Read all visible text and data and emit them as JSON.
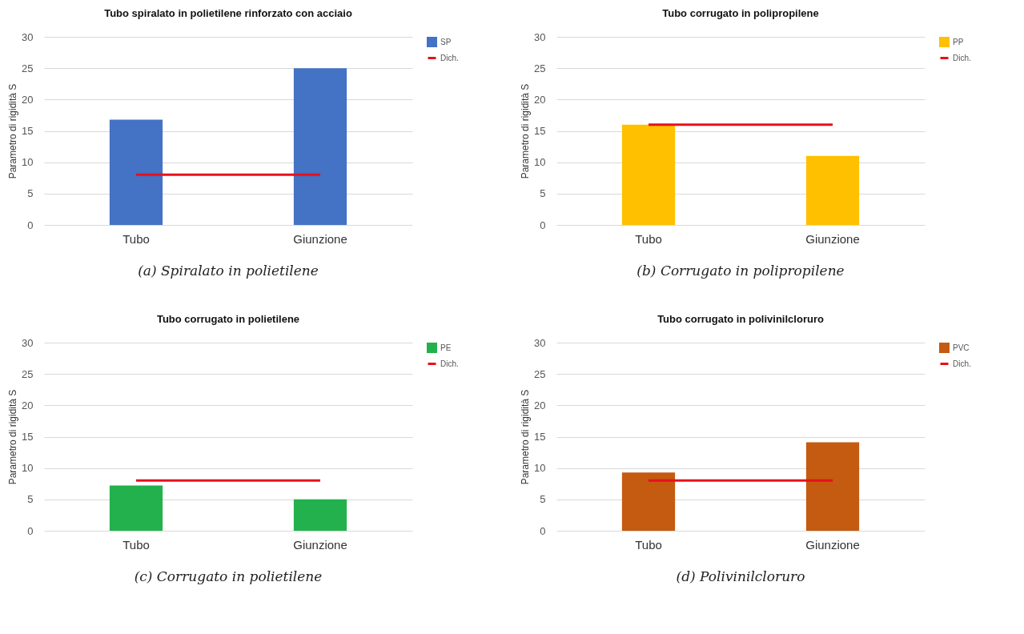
{
  "chart_data": [
    {
      "type": "bar",
      "title": "Tubo spiralato in polietilene rinforzato con acciaio",
      "ylabel": "Parametro di rigidità S",
      "categories": [
        "Tubo",
        "Giunzione"
      ],
      "series": [
        {
          "name": "SP",
          "color": "#4472c4",
          "values": [
            16.8,
            25
          ]
        },
        {
          "name": "Dich.",
          "type": "line",
          "color": "#e8101a",
          "values": [
            8,
            8
          ]
        }
      ],
      "ylim": [
        0,
        30
      ],
      "yticks": [
        0,
        5,
        10,
        15,
        20,
        25,
        30
      ],
      "grid": "y",
      "legend": "right",
      "annotations": [
        "(a) Spiralato in polietilene"
      ]
    },
    {
      "type": "bar",
      "title": "Tubo corrugato in polipropilene",
      "ylabel": "Parametro di rigidità S",
      "categories": [
        "Tubo",
        "Giunzione"
      ],
      "series": [
        {
          "name": "PP",
          "color": "#ffc000",
          "values": [
            16,
            11
          ]
        },
        {
          "name": "Dich.",
          "type": "line",
          "color": "#e8101a",
          "values": [
            16,
            16
          ]
        }
      ],
      "ylim": [
        0,
        30
      ],
      "yticks": [
        0,
        5,
        10,
        15,
        20,
        25,
        30
      ],
      "grid": "y",
      "legend": "right",
      "annotations": [
        "(b) Corrugato in polipropilene"
      ]
    },
    {
      "type": "bar",
      "title": "Tubo corrugato in polietilene",
      "ylabel": "Parametro di rigidità S",
      "categories": [
        "Tubo",
        "Giunzione"
      ],
      "series": [
        {
          "name": "PE",
          "color": "#22b14c",
          "values": [
            7.2,
            5
          ]
        },
        {
          "name": "Dich.",
          "type": "line",
          "color": "#e8101a",
          "values": [
            8,
            8
          ]
        }
      ],
      "ylim": [
        0,
        30
      ],
      "yticks": [
        0,
        5,
        10,
        15,
        20,
        25,
        30
      ],
      "grid": "y",
      "legend": "right",
      "annotations": [
        "(c) Corrugato in polietilene"
      ]
    },
    {
      "type": "bar",
      "title": "Tubo corrugato in polivinilcloruro",
      "ylabel": "Parametro di rigidità S",
      "categories": [
        "Tubo",
        "Giunzione"
      ],
      "series": [
        {
          "name": "PVC",
          "color": "#c55a11",
          "values": [
            9.3,
            14.1
          ]
        },
        {
          "name": "Dich.",
          "type": "line",
          "color": "#e8101a",
          "values": [
            8,
            8
          ]
        }
      ],
      "ylim": [
        0,
        30
      ],
      "yticks": [
        0,
        5,
        10,
        15,
        20,
        25,
        30
      ],
      "grid": "y",
      "legend": "right",
      "annotations": [
        "(d) Polivinilcloruro"
      ]
    }
  ]
}
